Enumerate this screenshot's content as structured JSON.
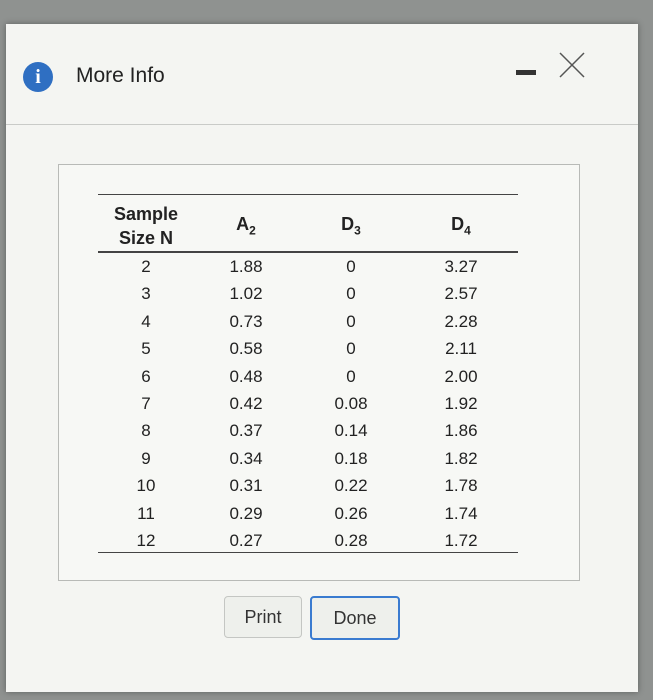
{
  "dialog": {
    "title": "More Info",
    "table": {
      "headers": [
        {
          "lines": [
            "Sample",
            "Size N"
          ]
        },
        {
          "letter": "A",
          "sub": "2"
        },
        {
          "letter": "D",
          "sub": "3"
        },
        {
          "letter": "D",
          "sub": "4"
        }
      ],
      "rows": [
        [
          "2",
          "1.88",
          "0",
          "3.27"
        ],
        [
          "3",
          "1.02",
          "0",
          "2.57"
        ],
        [
          "4",
          "0.73",
          "0",
          "2.28"
        ],
        [
          "5",
          "0.58",
          "0",
          "2.11"
        ],
        [
          "6",
          "0.48",
          "0",
          "2.00"
        ],
        [
          "7",
          "0.42",
          "0.08",
          "1.92"
        ],
        [
          "8",
          "0.37",
          "0.14",
          "1.86"
        ],
        [
          "9",
          "0.34",
          "0.18",
          "1.82"
        ],
        [
          "10",
          "0.31",
          "0.22",
          "1.78"
        ],
        [
          "11",
          "0.29",
          "0.26",
          "1.74"
        ],
        [
          "12",
          "0.27",
          "0.28",
          "1.72"
        ]
      ]
    },
    "buttons": [
      "Print",
      "Done"
    ]
  }
}
